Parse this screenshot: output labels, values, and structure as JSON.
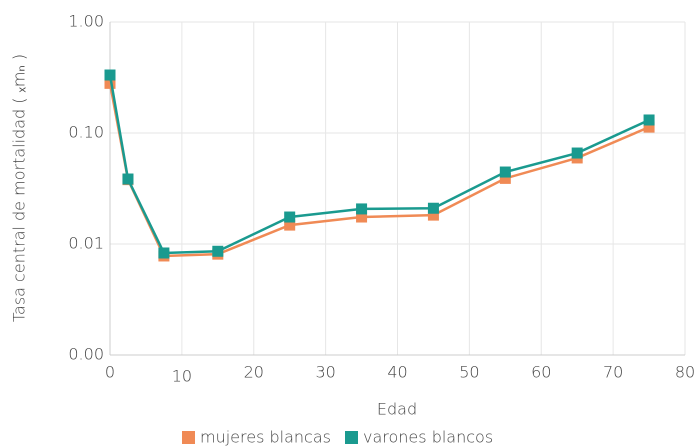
{
  "chart_data": {
    "type": "line",
    "x_label": "Edad",
    "y_label": "Tasa central de mortalidad ( ₓmₙ )",
    "log_y": true,
    "grid": true,
    "legend": "bottom",
    "xlim": [
      0,
      80
    ],
    "xticks": [
      0,
      10,
      20,
      30,
      40,
      50,
      60,
      70,
      80
    ],
    "ylim": [
      0.001,
      1
    ],
    "yticks": [
      {
        "value": 0.001,
        "label": "0.00"
      },
      0.01,
      {
        "value": 0.1,
        "label": "0.10"
      },
      {
        "value": 1,
        "label": "1.00"
      }
    ],
    "x": [
      0,
      2.5,
      7.5,
      15,
      25,
      35,
      45,
      55,
      65,
      75
    ],
    "series": [
      {
        "name": "mujeres blancas",
        "color": "#f08a55",
        "values": [
          0.28,
          0.038,
          0.0078,
          0.0081,
          0.0148,
          0.0175,
          0.0182,
          0.039,
          0.0596,
          0.113
        ]
      },
      {
        "name": "varones blancos",
        "color": "#1a9a8f",
        "values": [
          0.333,
          0.0385,
          0.0083,
          0.0086,
          0.0175,
          0.0207,
          0.021,
          0.0445,
          0.066,
          0.131
        ]
      }
    ]
  }
}
